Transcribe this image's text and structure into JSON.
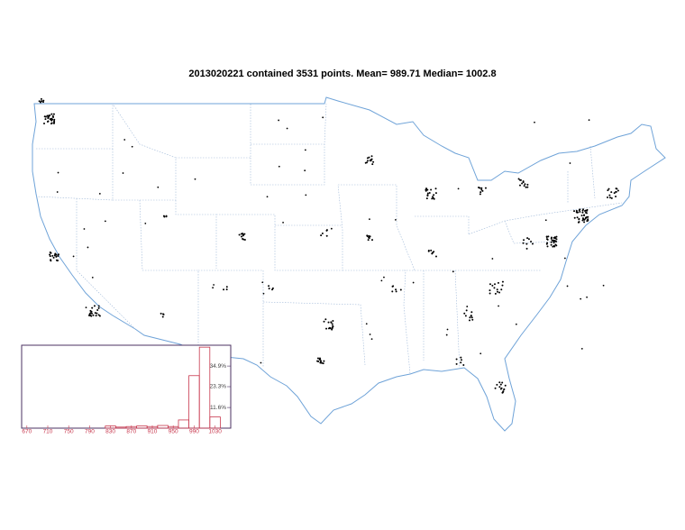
{
  "title": "2013020221 contained 3531 points.  Mean= 989.71  Median= 1002.8",
  "chart_data": {
    "type": "histogram",
    "bins": [
      660,
      680,
      700,
      720,
      740,
      760,
      780,
      800,
      820,
      840,
      860,
      880,
      900,
      920,
      940,
      960,
      980,
      1000,
      1020,
      1040,
      1060
    ],
    "values": [
      0,
      0,
      0,
      0,
      0,
      0,
      0,
      0,
      1.2,
      0.6,
      0.9,
      1.2,
      0.9,
      1.5,
      0.9,
      4.6,
      29.5,
      45.5,
      6.3,
      0
    ],
    "color": "#c8384e",
    "xlim": [
      660,
      1060
    ],
    "xticks": [
      670,
      710,
      750,
      790,
      830,
      870,
      910,
      950,
      990,
      1030
    ],
    "ylim": [
      0,
      46.6
    ],
    "yticks": [
      {
        "value": 11.6,
        "label": "11.6%"
      },
      {
        "value": 23.3,
        "label": "23.3%"
      },
      {
        "value": 34.9,
        "label": "34.9%"
      }
    ]
  }
}
